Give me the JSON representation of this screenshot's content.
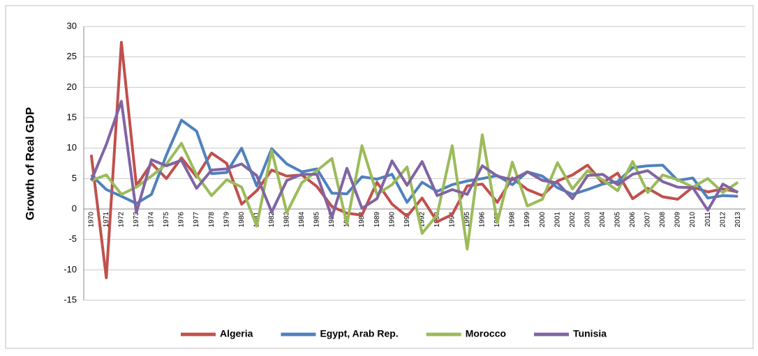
{
  "chart_data": {
    "type": "line",
    "y_label": "Growth of Real GDP",
    "categories": [
      "1970",
      "1971",
      "1972",
      "1973",
      "1974",
      "1975",
      "1976",
      "1977",
      "1978",
      "1979",
      "1980",
      "1981",
      "1982",
      "1983",
      "1984",
      "1985",
      "1986",
      "1987",
      "1988",
      "1989",
      "1990",
      "1991",
      "1992",
      "1993",
      "1994",
      "1995",
      "1996",
      "1997",
      "1998",
      "1999",
      "2000",
      "2001",
      "2002",
      "2003",
      "2004",
      "2005",
      "2006",
      "2007",
      "2008",
      "2009",
      "2010",
      "2011",
      "2012",
      "2013"
    ],
    "series": [
      {
        "name": "Algeria",
        "color": "#c0504d",
        "values": [
          8.9,
          -11.3,
          27.4,
          3.8,
          7.5,
          5.0,
          8.4,
          5.3,
          9.2,
          7.5,
          0.8,
          3.0,
          6.4,
          5.4,
          5.6,
          3.7,
          0.4,
          -0.7,
          -1.0,
          4.4,
          0.8,
          -1.2,
          1.8,
          -2.1,
          -0.9,
          3.8,
          4.1,
          1.1,
          5.1,
          3.2,
          2.2,
          4.6,
          5.6,
          7.2,
          4.3,
          5.9,
          1.7,
          3.4,
          2.0,
          1.6,
          3.6,
          2.8,
          3.3,
          2.8
        ]
      },
      {
        "name": "Egypt, Arab Rep.",
        "color": "#4f81bd",
        "values": [
          5.6,
          3.2,
          2.1,
          0.9,
          2.4,
          8.9,
          14.6,
          12.8,
          5.8,
          6.0,
          10.0,
          3.8,
          9.9,
          7.4,
          6.1,
          6.6,
          2.6,
          2.5,
          5.3,
          4.9,
          5.7,
          1.1,
          4.4,
          2.9,
          4.0,
          4.6,
          5.0,
          5.5,
          4.0,
          6.1,
          5.4,
          3.5,
          2.4,
          3.2,
          4.1,
          4.5,
          6.8,
          7.1,
          7.2,
          4.7,
          5.1,
          1.8,
          2.2,
          2.1
        ]
      },
      {
        "name": "Morocco",
        "color": "#9bbb59",
        "values": [
          4.7,
          5.6,
          2.4,
          3.6,
          5.4,
          7.4,
          10.8,
          5.6,
          2.2,
          4.8,
          3.6,
          -2.8,
          9.6,
          -0.6,
          4.3,
          6.3,
          8.3,
          -2.5,
          10.4,
          2.4,
          4.0,
          6.9,
          -4.0,
          -1.0,
          10.4,
          -6.6,
          12.2,
          -2.2,
          7.7,
          0.5,
          1.6,
          7.6,
          3.3,
          6.3,
          4.8,
          3.0,
          7.8,
          2.7,
          5.6,
          4.8,
          3.6,
          5.0,
          2.7,
          4.4
        ]
      },
      {
        "name": "Tunisia",
        "color": "#8064a2",
        "values": [
          4.7,
          10.6,
          17.7,
          -0.6,
          8.1,
          7.1,
          8.0,
          3.4,
          6.4,
          6.6,
          7.4,
          5.5,
          -0.5,
          4.7,
          5.7,
          5.7,
          -1.4,
          6.7,
          0.1,
          1.7,
          7.9,
          3.9,
          7.8,
          2.2,
          3.2,
          2.4,
          7.1,
          5.4,
          4.8,
          6.1,
          4.7,
          4.3,
          1.7,
          5.5,
          5.7,
          4.0,
          5.7,
          6.3,
          4.5,
          3.6,
          3.5,
          -0.2,
          4.1,
          2.7
        ]
      }
    ],
    "ylim": [
      -15,
      30
    ],
    "yticks": [
      -15,
      -10,
      -5,
      0,
      5,
      10,
      15,
      20,
      25,
      30
    ],
    "grid": true,
    "legend": "bottom"
  }
}
